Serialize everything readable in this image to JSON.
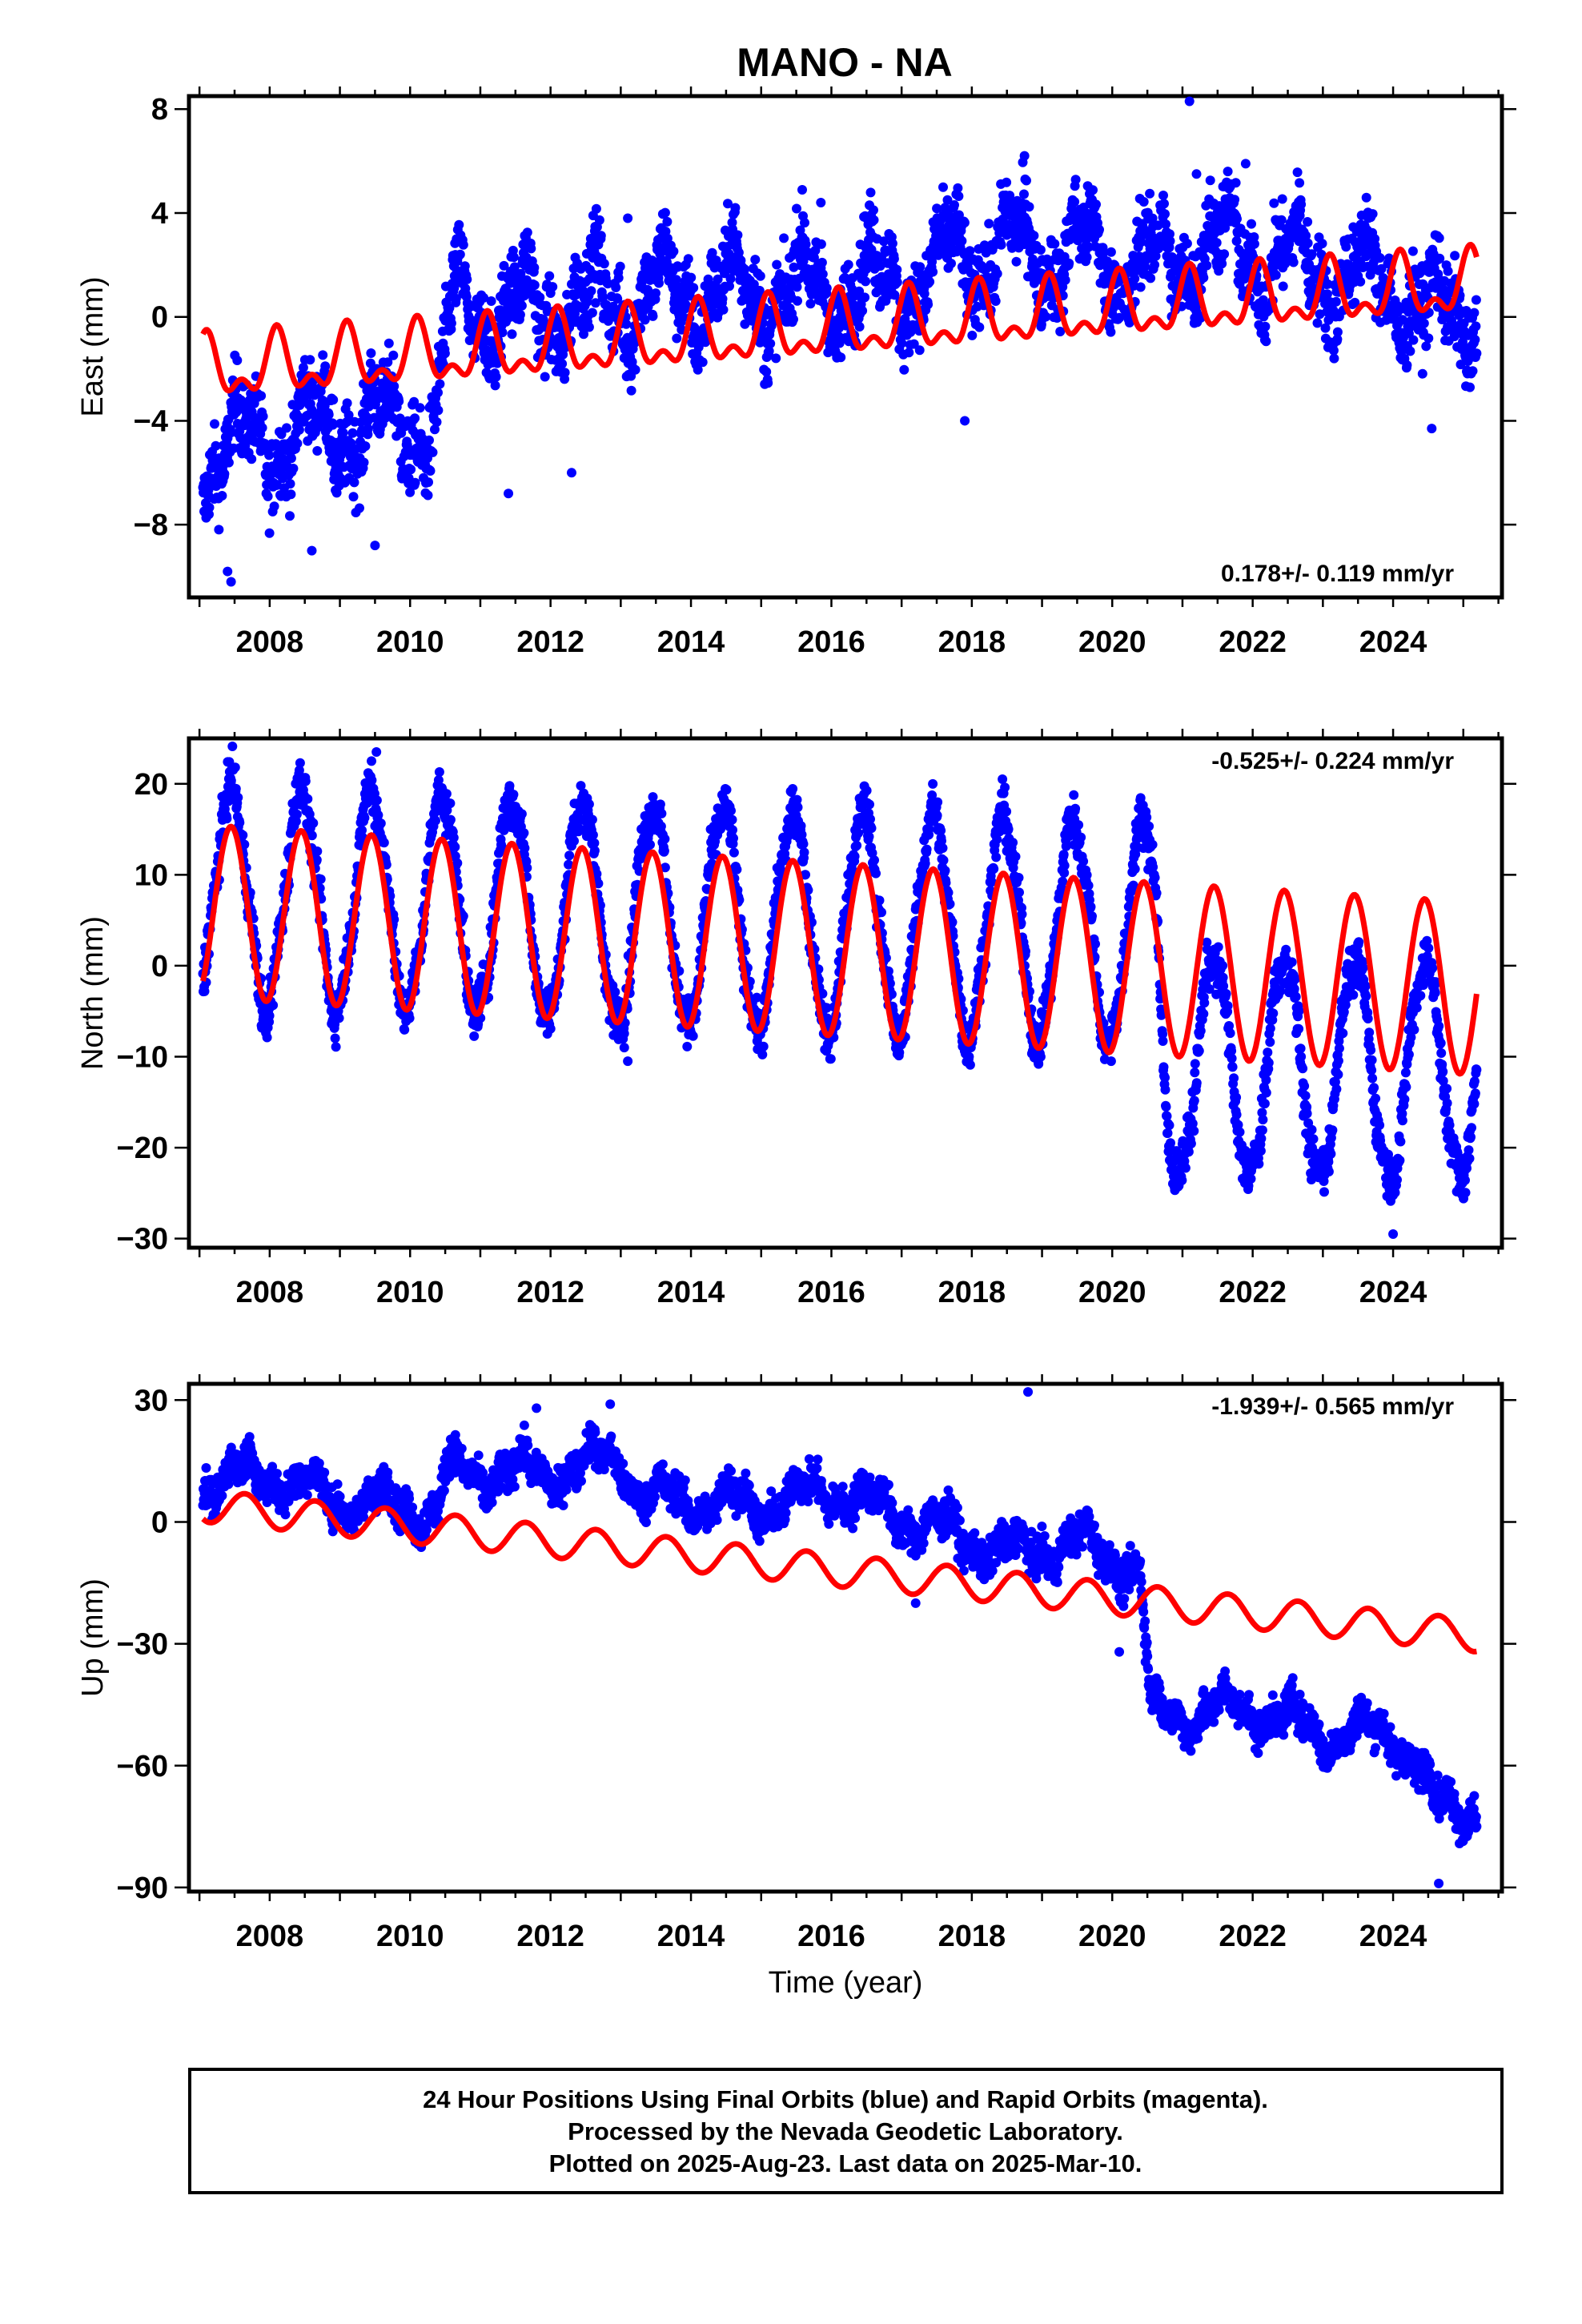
{
  "title": "MANO - NA",
  "footer": {
    "lines": [
      "24 Hour Positions Using Final Orbits (blue) and Rapid Orbits (magenta).",
      "Processed by the Nevada Geodetic Laboratory.",
      "Plotted on 2025-Aug-23. Last data on 2025-Mar-10."
    ]
  },
  "colors": {
    "data": "#0000ff",
    "model": "#ff0000",
    "frame": "#000000"
  },
  "chart_data": [
    {
      "type": "scatter",
      "component": "east",
      "ylabel": "East (mm)",
      "xlabel": "",
      "xlim": [
        2006.85,
        2025.55
      ],
      "ylim": [
        -10.8,
        8.5
      ],
      "xticks": [
        "2008",
        "2010",
        "2012",
        "2014",
        "2016",
        "2018",
        "2020",
        "2022",
        "2024"
      ],
      "yticks": [
        "8",
        "4",
        "0",
        "−4",
        "−8"
      ],
      "yticks_values": [
        8,
        4,
        0,
        -4,
        -8
      ],
      "rate_label": "0.178+/- 0.119 mm/yr",
      "rate_position": "bottom-right",
      "series": [
        {
          "name": "",
          "kind": "points",
          "x_start": 2007.05,
          "x_end": 2025.19,
          "level_anchors": [
            [
              2007.05,
              -5.5
            ],
            [
              2008.0,
              -4.6
            ],
            [
              2009.0,
              -4.2
            ],
            [
              2010.0,
              -4.2
            ],
            [
              2010.4,
              -3.9
            ],
            [
              2010.6,
              0.3
            ],
            [
              2012.0,
              0.3
            ],
            [
              2014.0,
              1.0
            ],
            [
              2016.0,
              1.0
            ],
            [
              2017.0,
              1.4
            ],
            [
              2017.55,
              1.4
            ],
            [
              2017.65,
              2.4
            ],
            [
              2019.0,
              2.6
            ],
            [
              2020.0,
              2.2
            ],
            [
              2020.7,
              1.8
            ],
            [
              2021.2,
              2.8
            ],
            [
              2022.0,
              2.4
            ],
            [
              2023.0,
              1.8
            ],
            [
              2024.0,
              1.2
            ],
            [
              2024.5,
              0.0
            ],
            [
              2025.19,
              0.4
            ]
          ],
          "annual_amplitude": 1.4,
          "scatter": 1.1,
          "outliers": [
            [
              2021.1,
              8.3
            ],
            [
              2018.75,
              6.2
            ],
            [
              2021.2,
              5.5
            ],
            [
              2021.9,
              5.9
            ],
            [
              2013.1,
              3.8
            ],
            [
              2015.85,
              4.4
            ],
            [
              2007.45,
              -10.2
            ],
            [
              2007.4,
              -9.8
            ],
            [
              2008.6,
              -9.0
            ],
            [
              2009.5,
              -8.8
            ],
            [
              2011.4,
              -6.8
            ],
            [
              2012.3,
              -6.0
            ],
            [
              2017.9,
              -4.0
            ],
            [
              2024.55,
              -4.3
            ]
          ]
        },
        {
          "name": "",
          "kind": "model",
          "x_start": 2007.05,
          "x_end": 2025.19,
          "trend_start": -2.1,
          "trend_end": 1.2,
          "annual_amplitude": 1.0,
          "annual_phase_year": 2008.1
        }
      ]
    },
    {
      "type": "scatter",
      "component": "north",
      "ylabel": "North (mm)",
      "xlabel": "",
      "xlim": [
        2006.85,
        2025.55
      ],
      "ylim": [
        -31.0,
        25.0
      ],
      "xticks": [
        "2008",
        "2010",
        "2012",
        "2014",
        "2016",
        "2018",
        "2020",
        "2022",
        "2024"
      ],
      "yticks": [
        "20",
        "10",
        "0",
        "−10",
        "−20",
        "−30"
      ],
      "yticks_values": [
        20,
        10,
        0,
        -10,
        -20,
        -30
      ],
      "rate_label": "-0.525+/- 0.224 mm/yr",
      "rate_position": "top-right",
      "series": [
        {
          "name": "",
          "kind": "points",
          "x_start": 2007.05,
          "x_end": 2025.19,
          "level_anchors": [
            [
              2007.05,
              7.5
            ],
            [
              2010.0,
              7.0
            ],
            [
              2015.0,
              5.0
            ],
            [
              2020.6,
              3.5
            ],
            [
              2020.75,
              -11.0
            ],
            [
              2024.0,
              -11.5
            ],
            [
              2025.19,
              -11.0
            ]
          ],
          "annual_amplitude": 12.0,
          "annual_phase_year": 2007.45,
          "scatter": 1.8,
          "outliers": [
            [
              2009.52,
              23.5
            ],
            [
              2009.45,
              22.5
            ],
            [
              2013.1,
              -10.5
            ],
            [
              2013.05,
              -9.0
            ],
            [
              2018.95,
              -10.8
            ],
            [
              2024.0,
              -29.5
            ]
          ]
        },
        {
          "name": "",
          "kind": "model",
          "x_start": 2007.05,
          "x_end": 2025.19,
          "trend_start": 6.0,
          "trend_end": -2.5,
          "annual_amplitude": 9.5,
          "annual_phase_year": 2007.45
        }
      ]
    },
    {
      "type": "scatter",
      "component": "up",
      "ylabel": "Up (mm)",
      "xlabel": "Time (year)",
      "xlim": [
        2006.85,
        2025.55
      ],
      "ylim": [
        -91.0,
        34.0
      ],
      "xticks": [
        "2008",
        "2010",
        "2012",
        "2014",
        "2016",
        "2018",
        "2020",
        "2022",
        "2024"
      ],
      "yticks": [
        "30",
        "0",
        "−30",
        "−60",
        "−90"
      ],
      "yticks_values": [
        30,
        0,
        -30,
        -60,
        -90
      ],
      "rate_label": "-1.939+/- 0.565 mm/yr",
      "rate_position": "top-right",
      "series": [
        {
          "name": "",
          "kind": "points",
          "x_start": 2007.05,
          "x_end": 2025.19,
          "level_anchors": [
            [
              2007.05,
              10.0
            ],
            [
              2008.0,
              12.0
            ],
            [
              2009.0,
              5.0
            ],
            [
              2010.0,
              4.0
            ],
            [
              2010.4,
              2.0
            ],
            [
              2010.5,
              12.0
            ],
            [
              2012.0,
              12.0
            ],
            [
              2013.0,
              16.0
            ],
            [
              2013.3,
              6.0
            ],
            [
              2015.0,
              4.0
            ],
            [
              2016.0,
              8.0
            ],
            [
              2017.2,
              0.0
            ],
            [
              2017.6,
              -2.0
            ],
            [
              2018.5,
              -8.0
            ],
            [
              2019.5,
              -5.0
            ],
            [
              2020.4,
              -12.0
            ],
            [
              2020.55,
              -48.0
            ],
            [
              2022.0,
              -46.0
            ],
            [
              2023.0,
              -52.0
            ],
            [
              2024.0,
              -52.0
            ],
            [
              2024.3,
              -58.0
            ],
            [
              2024.6,
              -70.0
            ],
            [
              2025.19,
              -70.0
            ]
          ],
          "annual_amplitude": 4.0,
          "scatter": 3.2,
          "outliers": [
            [
              2018.8,
              32.0
            ],
            [
              2012.85,
              29.0
            ],
            [
              2011.8,
              28.0
            ],
            [
              2024.65,
              -89.0
            ],
            [
              2020.1,
              -32.0
            ],
            [
              2017.2,
              -20.0
            ]
          ]
        },
        {
          "name": "",
          "kind": "model",
          "x_start": 2007.05,
          "x_end": 2025.19,
          "trend_start": 4.0,
          "trend_end": -28.0,
          "annual_amplitude": 4.0,
          "annual_phase_year": 2007.65
        }
      ]
    }
  ]
}
